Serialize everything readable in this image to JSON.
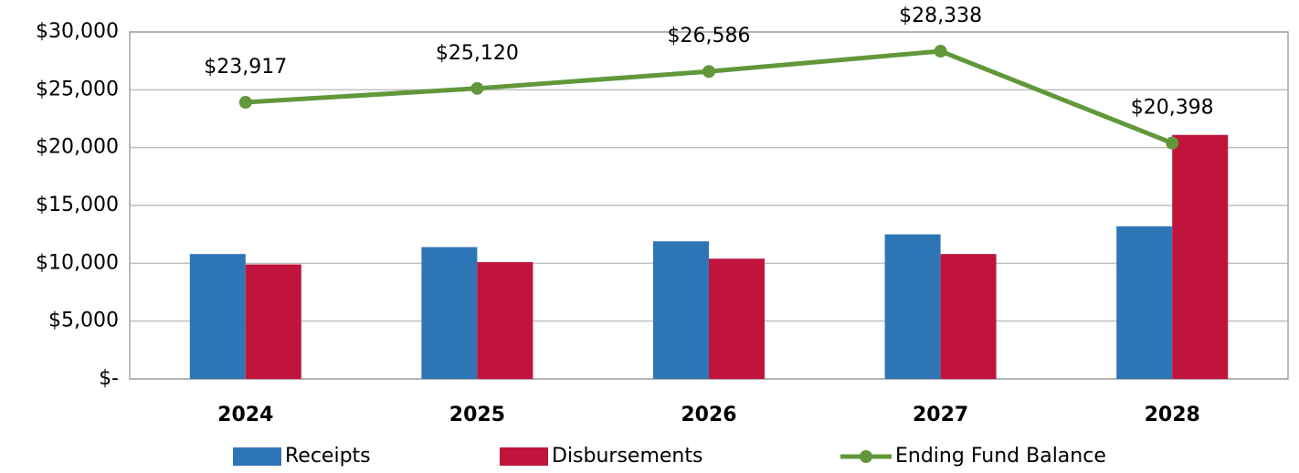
{
  "chart_data": {
    "type": "bar",
    "categories": [
      "2024",
      "2025",
      "2026",
      "2027",
      "2028"
    ],
    "series": [
      {
        "name": "Receipts",
        "type": "bar",
        "color": "#2e75b6",
        "values": [
          10800,
          11400,
          11900,
          12500,
          13200
        ]
      },
      {
        "name": "Disbursements",
        "type": "bar",
        "color": "#c0143c",
        "values": [
          9900,
          10100,
          10400,
          10800,
          21100
        ]
      },
      {
        "name": "Ending Fund Balance",
        "type": "line",
        "color": "#62973a",
        "values": [
          23917,
          25120,
          26586,
          28338,
          20398
        ],
        "value_labels": [
          "$23,917",
          "$25,120",
          "$26,586",
          "$28,338",
          "$20,398"
        ]
      }
    ],
    "ylim": [
      0,
      30000
    ],
    "yticks": [
      {
        "value": 0,
        "label": "$-"
      },
      {
        "value": 5000,
        "label": "$5,000"
      },
      {
        "value": 10000,
        "label": "$10,000"
      },
      {
        "value": 15000,
        "label": "$15,000"
      },
      {
        "value": 20000,
        "label": "$20,000"
      },
      {
        "value": 25000,
        "label": "$25,000"
      },
      {
        "value": 30000,
        "label": "$30,000"
      }
    ],
    "grid": true,
    "legend": "bottom"
  }
}
